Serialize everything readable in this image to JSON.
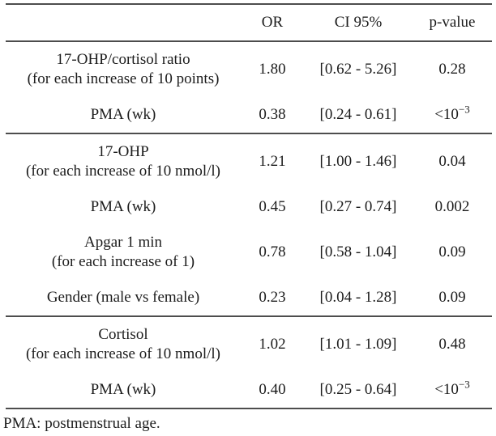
{
  "table": {
    "header": {
      "predictor": "",
      "or": "OR",
      "ci": "CI 95%",
      "p": "p-value"
    },
    "sections": [
      {
        "rows": [
          {
            "label1": "17-OHP/cortisol ratio",
            "label2": "(for each increase of 10 points)",
            "or": "1.80",
            "ci": "[0.62 - 5.26]",
            "p": "0.28",
            "psup": ""
          },
          {
            "label1": "PMA (wk)",
            "label2": "",
            "or": "0.38",
            "ci": "[0.24 - 0.61]",
            "p": "<10",
            "psup": "−3"
          }
        ]
      },
      {
        "rows": [
          {
            "label1": "17-OHP",
            "label2": "(for each increase of 10 nmol/l)",
            "or": "1.21",
            "ci": "[1.00 - 1.46]",
            "p": "0.04",
            "psup": ""
          },
          {
            "label1": "PMA (wk)",
            "label2": "",
            "or": "0.45",
            "ci": "[0.27 - 0.74]",
            "p": "0.002",
            "psup": ""
          },
          {
            "label1": "Apgar 1 min",
            "label2": "(for each increase of 1)",
            "or": "0.78",
            "ci": "[0.58 - 1.04]",
            "p": "0.09",
            "psup": ""
          },
          {
            "label1": "Gender (male vs female)",
            "label2": "",
            "or": "0.23",
            "ci": "[0.04 - 1.28]",
            "p": "0.09",
            "psup": ""
          }
        ]
      },
      {
        "rows": [
          {
            "label1": "Cortisol",
            "label2": "(for each increase of 10 nmol/l)",
            "or": "1.02",
            "ci": "[1.01 - 1.09]",
            "p": "0.48",
            "psup": ""
          },
          {
            "label1": "PMA (wk)",
            "label2": "",
            "or": "0.40",
            "ci": "[0.25 - 0.64]",
            "p": "<10",
            "psup": "−3"
          }
        ]
      }
    ]
  },
  "footnote": "PMA: postmenstrual age."
}
